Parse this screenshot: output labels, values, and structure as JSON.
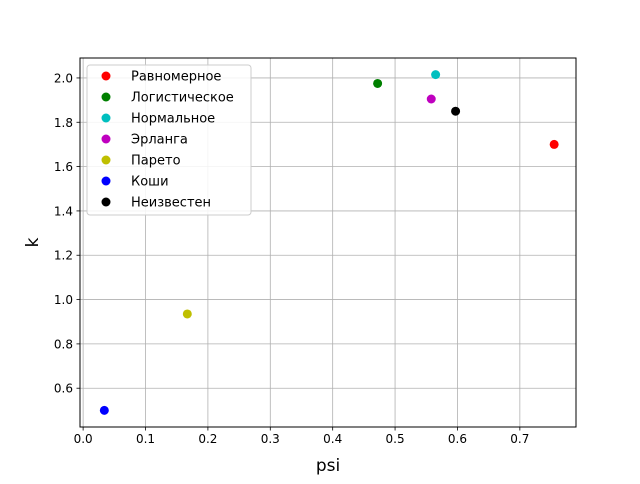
{
  "chart_data": {
    "type": "scatter",
    "xlabel": "psi",
    "ylabel": "k",
    "xlim": [
      -0.005,
      0.79
    ],
    "ylim": [
      0.425,
      2.09
    ],
    "xticks": [
      0.0,
      0.1,
      0.2,
      0.3,
      0.4,
      0.5,
      0.6,
      0.7
    ],
    "yticks": [
      0.6,
      0.8,
      1.0,
      1.2,
      1.4,
      1.6,
      1.8,
      2.0
    ],
    "xtick_labels": [
      "0.0",
      "0.1",
      "0.2",
      "0.3",
      "0.4",
      "0.5",
      "0.6",
      "0.7"
    ],
    "ytick_labels": [
      "0.6",
      "0.8",
      "1.0",
      "1.2",
      "1.4",
      "1.6",
      "1.8",
      "2.0"
    ],
    "grid": true,
    "legend_position": "top-left",
    "series": [
      {
        "name": "Равномерное",
        "color": "#ff0000",
        "x": [
          0.755
        ],
        "y": [
          1.7
        ]
      },
      {
        "name": "Логистическое",
        "color": "#008000",
        "x": [
          0.472
        ],
        "y": [
          1.975
        ]
      },
      {
        "name": "Нормальное",
        "color": "#00bfbf",
        "x": [
          0.565
        ],
        "y": [
          2.015
        ]
      },
      {
        "name": "Эрланга",
        "color": "#bf00bf",
        "x": [
          0.558
        ],
        "y": [
          1.905
        ]
      },
      {
        "name": "Парето",
        "color": "#bfbf00",
        "x": [
          0.167
        ],
        "y": [
          0.935
        ]
      },
      {
        "name": "Коши",
        "color": "#0000ff",
        "x": [
          0.034
        ],
        "y": [
          0.5
        ]
      },
      {
        "name": "Неизвестен",
        "color": "#000000",
        "x": [
          0.597
        ],
        "y": [
          1.85
        ]
      }
    ]
  }
}
